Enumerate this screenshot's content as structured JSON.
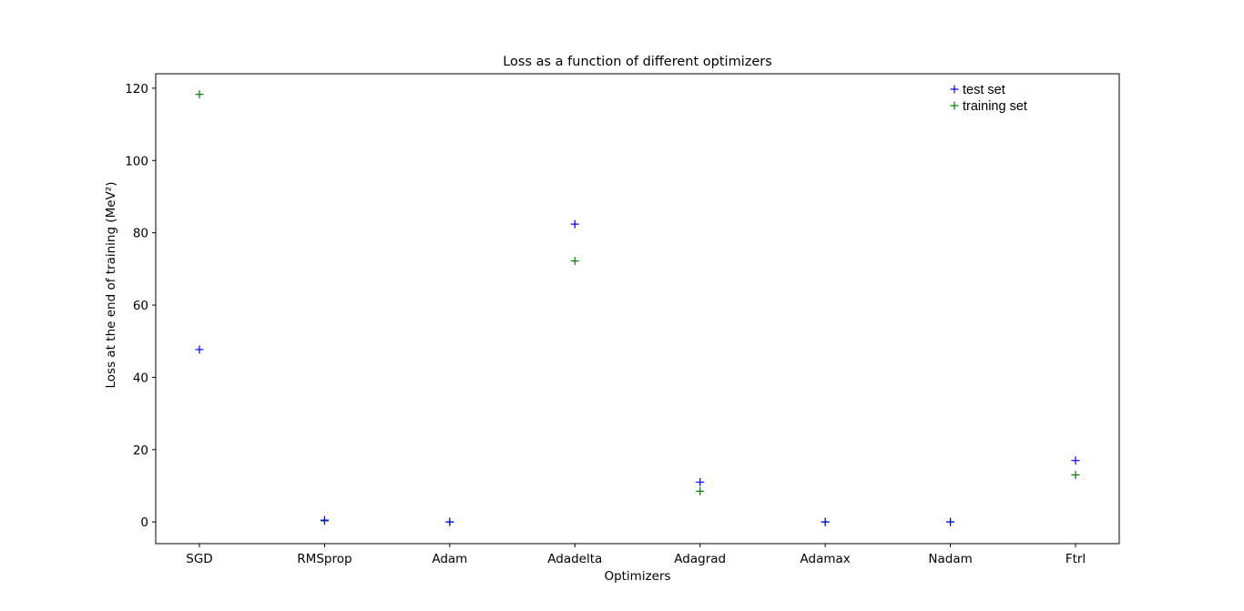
{
  "chart_data": {
    "type": "scatter",
    "title": "Loss as a function of different optimizers",
    "xlabel": "Optimizers",
    "ylabel": "Loss at the end of training  (MeV²)",
    "categories": [
      "SGD",
      "RMSprop",
      "Adam",
      "Adadelta",
      "Adagrad",
      "Adamax",
      "Nadam",
      "Ftrl"
    ],
    "ylim": [
      -6,
      124
    ],
    "yticks": [
      0,
      20,
      40,
      60,
      80,
      100,
      120
    ],
    "marker": "+",
    "grid": false,
    "legend_position": "top-right",
    "series": [
      {
        "name": "test set",
        "color": "#0000ff",
        "values": [
          47.7,
          0.5,
          0.0,
          82.4,
          11.0,
          0.0,
          0.0,
          17.0
        ]
      },
      {
        "name": "training set",
        "color": "#008000",
        "values": [
          118.3,
          0.3,
          0.0,
          72.2,
          8.5,
          0.0,
          0.0,
          13.0
        ]
      }
    ]
  }
}
